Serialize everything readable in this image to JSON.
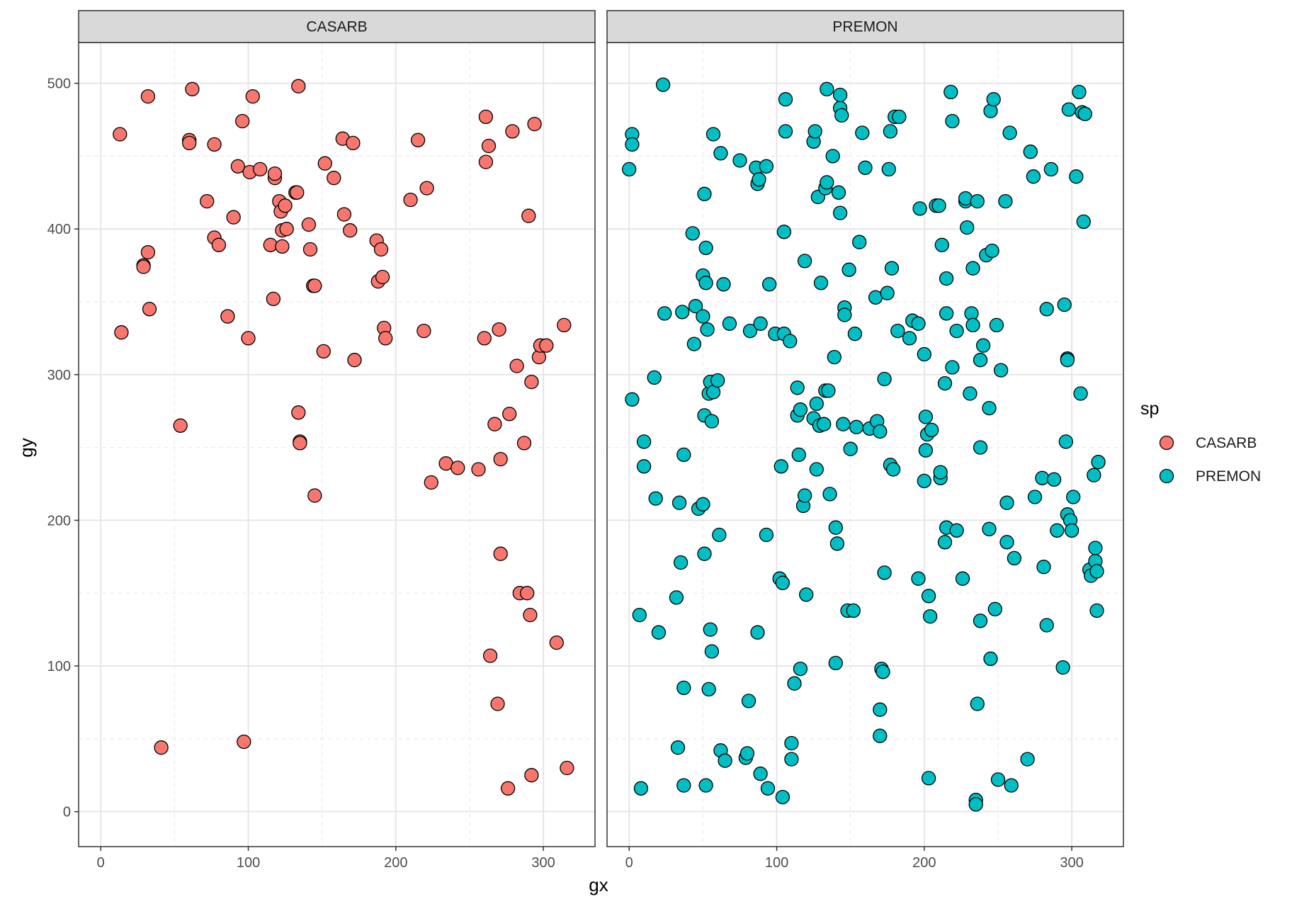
{
  "chart_data": {
    "type": "scatter",
    "xlabel": "gx",
    "ylabel": "gy",
    "xlim": [
      -15,
      335
    ],
    "ylim": [
      -24,
      528
    ],
    "x_ticks": [
      0,
      100,
      200,
      300
    ],
    "y_ticks": [
      0,
      100,
      200,
      300,
      400,
      500
    ],
    "grid": true,
    "legend": {
      "title": "sp",
      "position": "right",
      "entries": [
        "CASARB",
        "PREMON"
      ]
    },
    "colors": {
      "CASARB": "#F8766D",
      "PREMON": "#00BFC4"
    },
    "panels": [
      {
        "name": "CASARB",
        "color": "#F8766D",
        "x": [
          13,
          14,
          32,
          32,
          33,
          29,
          29,
          41,
          54,
          60,
          60,
          62,
          72,
          77,
          77,
          80,
          86,
          86,
          90,
          93,
          96,
          97,
          100,
          101,
          103,
          108,
          115,
          117,
          118,
          118,
          121,
          122,
          123,
          123,
          125,
          126,
          132,
          133,
          134,
          134,
          135,
          135,
          141,
          142,
          144,
          145,
          145,
          151,
          152,
          158,
          164,
          165,
          169,
          171,
          172,
          187,
          188,
          190,
          191,
          192,
          193,
          210,
          215,
          219,
          221,
          224,
          234,
          242,
          256,
          260,
          261,
          261,
          263,
          264,
          267,
          269,
          270,
          271,
          271,
          276,
          277,
          279,
          282,
          284,
          287,
          289,
          290,
          291,
          292,
          292,
          294,
          297,
          298,
          302,
          309,
          314,
          316
        ],
        "y": [
          465,
          329,
          491,
          384,
          345,
          375,
          374,
          44,
          265,
          461,
          459,
          496,
          419,
          394,
          458,
          389,
          340,
          340,
          408,
          443,
          474,
          48,
          325,
          439,
          491,
          441,
          389,
          352,
          435,
          438,
          419,
          412,
          399,
          388,
          416,
          400,
          425,
          425,
          498,
          274,
          254,
          253,
          403,
          386,
          361,
          361,
          217,
          316,
          445,
          435,
          462,
          410,
          399,
          459,
          310,
          392,
          364,
          386,
          367,
          332,
          325,
          420,
          461,
          330,
          428,
          226,
          239,
          236,
          235,
          325,
          446,
          477,
          457,
          107,
          266,
          74,
          331,
          242,
          177,
          16,
          273,
          467,
          306,
          150,
          253,
          150,
          409,
          135,
          295,
          25,
          472,
          312,
          320,
          320,
          116,
          334,
          30
        ]
      },
      {
        "name": "PREMON",
        "color": "#00BFC4",
        "x": [
          0,
          2,
          2,
          2,
          7,
          8,
          10,
          10,
          17,
          18,
          20,
          23,
          24,
          32,
          33,
          34,
          35,
          36,
          37,
          37,
          37,
          43,
          44,
          45,
          47,
          50,
          50,
          50,
          51,
          51,
          51,
          52,
          52,
          52,
          53,
          54,
          54,
          55,
          55,
          56,
          56,
          57,
          57,
          60,
          61,
          62,
          62,
          64,
          65,
          68,
          75,
          79,
          80,
          81,
          82,
          86,
          87,
          87,
          88,
          89,
          89,
          93,
          93,
          94,
          95,
          99,
          102,
          103,
          104,
          104,
          105,
          105,
          106,
          106,
          109,
          110,
          110,
          112,
          114,
          114,
          115,
          116,
          116,
          118,
          119,
          119,
          120,
          125,
          125,
          126,
          127,
          127,
          128,
          129,
          130,
          132,
          133,
          133,
          134,
          134,
          135,
          136,
          138,
          139,
          140,
          140,
          141,
          142,
          143,
          143,
          143,
          144,
          145,
          146,
          146,
          148,
          149,
          150,
          152,
          153,
          154,
          156,
          158,
          160,
          163,
          167,
          168,
          170,
          170,
          170,
          171,
          172,
          173,
          173,
          175,
          176,
          177,
          177,
          178,
          179,
          180,
          182,
          183,
          190,
          192,
          196,
          196,
          197,
          200,
          200,
          201,
          201,
          202,
          203,
          203,
          204,
          205,
          208,
          210,
          211,
          211,
          212,
          214,
          214,
          215,
          215,
          215,
          218,
          219,
          219,
          222,
          222,
          226,
          228,
          228,
          229,
          231,
          232,
          233,
          233,
          235,
          235,
          236,
          236,
          238,
          238,
          238,
          240,
          242,
          244,
          244,
          245,
          245,
          246,
          247,
          248,
          249,
          250,
          252,
          255,
          256,
          256,
          258,
          259,
          261,
          270,
          272,
          274,
          275,
          280,
          281,
          283,
          283,
          286,
          288,
          290,
          294,
          295,
          296,
          297,
          297,
          297,
          298,
          299,
          300,
          301,
          303,
          305,
          306,
          307,
          308,
          309,
          312,
          313,
          315,
          316,
          316,
          317,
          317,
          318
        ],
        "y": [
          441,
          283,
          465,
          458,
          135,
          16,
          237,
          254,
          298,
          215,
          123,
          499,
          342,
          147,
          44,
          212,
          171,
          343,
          85,
          18,
          245,
          397,
          321,
          347,
          208,
          211,
          368,
          340,
          177,
          424,
          272,
          363,
          387,
          18,
          331,
          287,
          84,
          125,
          295,
          268,
          110,
          288,
          465,
          296,
          190,
          452,
          42,
          362,
          35,
          335,
          447,
          37,
          40,
          76,
          330,
          442,
          123,
          431,
          434,
          335,
          26,
          443,
          190,
          16,
          362,
          328,
          160,
          237,
          157,
          10,
          398,
          328,
          467,
          489,
          323,
          36,
          47,
          88,
          291,
          272,
          245,
          276,
          98,
          210,
          378,
          217,
          149,
          270,
          460,
          467,
          235,
          280,
          422,
          265,
          363,
          266,
          289,
          428,
          496,
          432,
          289,
          218,
          450,
          312,
          195,
          102,
          184,
          425,
          411,
          483,
          492,
          478,
          266,
          346,
          341,
          138,
          372,
          249,
          138,
          328,
          264,
          391,
          466,
          442,
          263,
          353,
          268,
          52,
          70,
          261,
          98,
          96,
          164,
          297,
          356,
          441,
          238,
          467,
          373,
          235,
          477,
          330,
          477,
          325,
          337,
          335,
          160,
          414,
          314,
          227,
          271,
          248,
          259,
          23,
          148,
          134,
          262,
          416,
          416,
          229,
          233,
          389,
          294,
          185,
          342,
          366,
          195,
          494,
          474,
          305,
          193,
          330,
          160,
          419,
          421,
          401,
          287,
          342,
          373,
          334,
          8,
          5,
          74,
          419,
          310,
          131,
          250,
          320,
          382,
          277,
          194,
          105,
          481,
          385,
          489,
          139,
          334,
          22,
          303,
          419,
          212,
          185,
          466,
          18,
          174,
          36,
          453,
          436,
          216,
          229,
          168,
          128,
          345,
          441,
          228,
          193,
          99,
          348,
          254,
          311,
          310,
          204,
          482,
          200,
          193,
          216,
          436,
          494,
          287,
          480,
          405,
          479,
          166,
          162,
          231,
          172,
          181,
          138,
          165,
          240
        ]
      }
    ]
  }
}
